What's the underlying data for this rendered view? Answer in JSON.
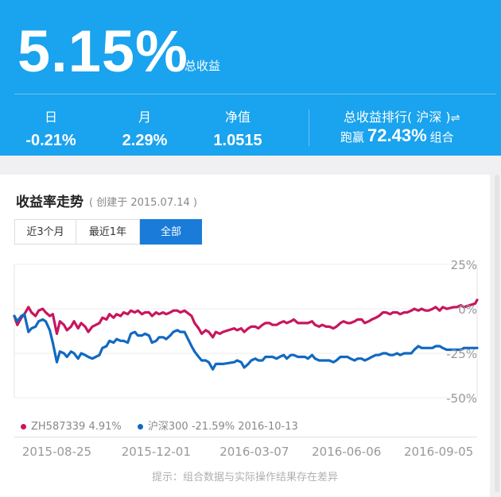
{
  "header": {
    "total_return": "5.15%",
    "total_return_label": "总收益",
    "stats": [
      {
        "label": "日",
        "value": "-0.21%"
      },
      {
        "label": "月",
        "value": "2.29%"
      },
      {
        "label": "净值",
        "value": "1.0515"
      }
    ],
    "rank": {
      "title": "总收益排行",
      "market": "( 沪深 )",
      "swap_icon": "swap-arrows-icon",
      "prefix": "跑赢",
      "percent": "72.43%",
      "suffix": "组合"
    },
    "colors": {
      "background": "#1aa3ee",
      "text": "#ffffff"
    }
  },
  "trend": {
    "title": "收益率走势",
    "created": "( 创建于 2015.07.14 )",
    "tabs": [
      {
        "label": "近3个月",
        "active": false
      },
      {
        "label": "最近1年",
        "active": false
      },
      {
        "label": "全部",
        "active": true
      }
    ]
  },
  "legend": {
    "portfolio": "ZH587339 4.91%",
    "index": "沪深300 -21.59% 2016-10-13"
  },
  "footer_tip": "提示：组合数据与实际操作结果存在差异",
  "chart_data": {
    "type": "line",
    "x_ticks": [
      "2015-08-25",
      "2015-12-01",
      "2016-03-07",
      "2016-06-06",
      "2016-09-05"
    ],
    "y_ticks": [
      "25%",
      "0%",
      "-25%",
      "-50%"
    ],
    "ylim": [
      -50,
      25
    ],
    "xlim": [
      "2015-07-14",
      "2016-10-13"
    ],
    "grid": true,
    "series": [
      {
        "name": "ZH587339",
        "color": "#c8165e",
        "points": [
          [
            "2015-07-14",
            -4
          ],
          [
            "2015-07-17",
            -9
          ],
          [
            "2015-07-21",
            -5
          ],
          [
            "2015-07-24",
            -3
          ],
          [
            "2015-07-28",
            1
          ],
          [
            "2015-07-31",
            -2
          ],
          [
            "2015-08-04",
            -4
          ],
          [
            "2015-08-07",
            -1
          ],
          [
            "2015-08-11",
            0
          ],
          [
            "2015-08-14",
            -2
          ],
          [
            "2015-08-18",
            -4
          ],
          [
            "2015-08-21",
            -3
          ],
          [
            "2015-08-25",
            -14
          ],
          [
            "2015-08-28",
            -7
          ],
          [
            "2015-09-01",
            -9
          ],
          [
            "2015-09-04",
            -12
          ],
          [
            "2015-09-08",
            -10
          ],
          [
            "2015-09-11",
            -7
          ],
          [
            "2015-09-15",
            -11
          ],
          [
            "2015-09-18",
            -8
          ],
          [
            "2015-09-22",
            -10
          ],
          [
            "2015-09-25",
            -13
          ],
          [
            "2015-09-29",
            -10
          ],
          [
            "2015-10-06",
            -8
          ],
          [
            "2015-10-09",
            -5
          ],
          [
            "2015-10-13",
            -6
          ],
          [
            "2015-10-16",
            -3
          ],
          [
            "2015-10-20",
            -5
          ],
          [
            "2015-10-23",
            -3
          ],
          [
            "2015-10-27",
            -4
          ],
          [
            "2015-10-30",
            -2
          ],
          [
            "2015-11-03",
            -3
          ],
          [
            "2015-11-06",
            -1
          ],
          [
            "2015-11-10",
            -2
          ],
          [
            "2015-11-13",
            -1
          ],
          [
            "2015-11-17",
            -3
          ],
          [
            "2015-11-20",
            -2
          ],
          [
            "2015-11-24",
            -2
          ],
          [
            "2015-11-27",
            -4
          ],
          [
            "2015-12-01",
            -2
          ],
          [
            "2015-12-04",
            -3
          ],
          [
            "2015-12-08",
            -2
          ],
          [
            "2015-12-11",
            -3
          ],
          [
            "2015-12-15",
            -2
          ],
          [
            "2015-12-18",
            -1
          ],
          [
            "2015-12-22",
            -1
          ],
          [
            "2015-12-25",
            -2
          ],
          [
            "2015-12-29",
            -1
          ],
          [
            "2016-01-05",
            -4
          ],
          [
            "2016-01-08",
            -8
          ],
          [
            "2016-01-12",
            -11
          ],
          [
            "2016-01-15",
            -14
          ],
          [
            "2016-01-19",
            -12
          ],
          [
            "2016-01-22",
            -13
          ],
          [
            "2016-01-26",
            -16
          ],
          [
            "2016-01-29",
            -13
          ],
          [
            "2016-02-02",
            -14
          ],
          [
            "2016-02-05",
            -13
          ],
          [
            "2016-02-16",
            -11
          ],
          [
            "2016-02-19",
            -12
          ],
          [
            "2016-02-23",
            -11
          ],
          [
            "2016-02-26",
            -13
          ],
          [
            "2016-03-01",
            -11
          ],
          [
            "2016-03-04",
            -10
          ],
          [
            "2016-03-08",
            -10
          ],
          [
            "2016-03-11",
            -11
          ],
          [
            "2016-03-15",
            -9
          ],
          [
            "2016-03-18",
            -8
          ],
          [
            "2016-03-22",
            -8
          ],
          [
            "2016-03-25",
            -9
          ],
          [
            "2016-03-29",
            -9
          ],
          [
            "2016-04-01",
            -8
          ],
          [
            "2016-04-05",
            -7
          ],
          [
            "2016-04-08",
            -8
          ],
          [
            "2016-04-12",
            -7
          ],
          [
            "2016-04-15",
            -6
          ],
          [
            "2016-04-19",
            -8
          ],
          [
            "2016-04-22",
            -8
          ],
          [
            "2016-04-26",
            -8
          ],
          [
            "2016-04-29",
            -8
          ],
          [
            "2016-05-03",
            -7
          ],
          [
            "2016-05-06",
            -9
          ],
          [
            "2016-05-10",
            -10
          ],
          [
            "2016-05-13",
            -9
          ],
          [
            "2016-05-17",
            -10
          ],
          [
            "2016-05-20",
            -10
          ],
          [
            "2016-05-24",
            -11
          ],
          [
            "2016-05-27",
            -10
          ],
          [
            "2016-05-31",
            -8
          ],
          [
            "2016-06-03",
            -7
          ],
          [
            "2016-06-07",
            -8
          ],
          [
            "2016-06-10",
            -8
          ],
          [
            "2016-06-14",
            -7
          ],
          [
            "2016-06-17",
            -6
          ],
          [
            "2016-06-21",
            -6
          ],
          [
            "2016-06-24",
            -8
          ],
          [
            "2016-06-28",
            -7
          ],
          [
            "2016-07-01",
            -6
          ],
          [
            "2016-07-05",
            -5
          ],
          [
            "2016-07-08",
            -4
          ],
          [
            "2016-07-12",
            -2
          ],
          [
            "2016-07-15",
            -2
          ],
          [
            "2016-07-19",
            -3
          ],
          [
            "2016-07-22",
            -2
          ],
          [
            "2016-07-26",
            -2
          ],
          [
            "2016-07-29",
            -3
          ],
          [
            "2016-08-02",
            -2
          ],
          [
            "2016-08-05",
            -2
          ],
          [
            "2016-08-09",
            -1
          ],
          [
            "2016-08-12",
            0
          ],
          [
            "2016-08-16",
            -1
          ],
          [
            "2016-08-19",
            0
          ],
          [
            "2016-08-23",
            -1
          ],
          [
            "2016-08-26",
            -1
          ],
          [
            "2016-08-30",
            0
          ],
          [
            "2016-09-02",
            1
          ],
          [
            "2016-09-06",
            -1
          ],
          [
            "2016-09-09",
            1
          ],
          [
            "2016-09-13",
            0
          ],
          [
            "2016-09-20",
            1
          ],
          [
            "2016-09-23",
            1
          ],
          [
            "2016-09-27",
            2
          ],
          [
            "2016-09-30",
            1
          ],
          [
            "2016-10-11",
            3
          ],
          [
            "2016-10-13",
            5
          ]
        ]
      },
      {
        "name": "沪深300",
        "color": "#1169c1",
        "points": [
          [
            "2015-07-14",
            -4
          ],
          [
            "2015-07-17",
            -7
          ],
          [
            "2015-07-21",
            -4
          ],
          [
            "2015-07-24",
            -3
          ],
          [
            "2015-07-28",
            -13
          ],
          [
            "2015-07-31",
            -11
          ],
          [
            "2015-08-04",
            -10
          ],
          [
            "2015-08-07",
            -7
          ],
          [
            "2015-08-11",
            -6
          ],
          [
            "2015-08-14",
            -7
          ],
          [
            "2015-08-18",
            -12
          ],
          [
            "2015-08-21",
            -19
          ],
          [
            "2015-08-25",
            -30
          ],
          [
            "2015-08-28",
            -24
          ],
          [
            "2015-09-01",
            -25
          ],
          [
            "2015-09-04",
            -27
          ],
          [
            "2015-09-08",
            -24
          ],
          [
            "2015-09-11",
            -25
          ],
          [
            "2015-09-15",
            -28
          ],
          [
            "2015-09-18",
            -25
          ],
          [
            "2015-09-22",
            -26
          ],
          [
            "2015-09-25",
            -27
          ],
          [
            "2015-09-29",
            -28
          ],
          [
            "2015-10-06",
            -26
          ],
          [
            "2015-10-09",
            -22
          ],
          [
            "2015-10-13",
            -21
          ],
          [
            "2015-10-16",
            -18
          ],
          [
            "2015-10-20",
            -19
          ],
          [
            "2015-10-23",
            -17
          ],
          [
            "2015-10-27",
            -18
          ],
          [
            "2015-10-30",
            -18
          ],
          [
            "2015-11-03",
            -19
          ],
          [
            "2015-11-06",
            -14
          ],
          [
            "2015-11-10",
            -13
          ],
          [
            "2015-11-13",
            -15
          ],
          [
            "2015-11-17",
            -15
          ],
          [
            "2015-11-20",
            -14
          ],
          [
            "2015-11-24",
            -15
          ],
          [
            "2015-11-27",
            -19
          ],
          [
            "2015-12-01",
            -18
          ],
          [
            "2015-12-04",
            -16
          ],
          [
            "2015-12-08",
            -16
          ],
          [
            "2015-12-11",
            -17
          ],
          [
            "2015-12-15",
            -15
          ],
          [
            "2015-12-18",
            -13
          ],
          [
            "2015-12-22",
            -12
          ],
          [
            "2015-12-25",
            -13
          ],
          [
            "2015-12-29",
            -13
          ],
          [
            "2016-01-05",
            -21
          ],
          [
            "2016-01-08",
            -24
          ],
          [
            "2016-01-12",
            -27
          ],
          [
            "2016-01-15",
            -29
          ],
          [
            "2016-01-19",
            -29
          ],
          [
            "2016-01-22",
            -30
          ],
          [
            "2016-01-26",
            -34
          ],
          [
            "2016-01-29",
            -31
          ],
          [
            "2016-02-02",
            -31
          ],
          [
            "2016-02-05",
            -31
          ],
          [
            "2016-02-16",
            -30
          ],
          [
            "2016-02-19",
            -29
          ],
          [
            "2016-02-23",
            -30
          ],
          [
            "2016-02-26",
            -33
          ],
          [
            "2016-03-01",
            -31
          ],
          [
            "2016-03-04",
            -29
          ],
          [
            "2016-03-08",
            -28
          ],
          [
            "2016-03-11",
            -29
          ],
          [
            "2016-03-15",
            -29
          ],
          [
            "2016-03-18",
            -27
          ],
          [
            "2016-03-22",
            -27
          ],
          [
            "2016-03-25",
            -27
          ],
          [
            "2016-03-29",
            -28
          ],
          [
            "2016-04-01",
            -27
          ],
          [
            "2016-04-05",
            -26
          ],
          [
            "2016-04-08",
            -28
          ],
          [
            "2016-04-12",
            -26
          ],
          [
            "2016-04-15",
            -26
          ],
          [
            "2016-04-19",
            -27
          ],
          [
            "2016-04-22",
            -27
          ],
          [
            "2016-04-26",
            -27
          ],
          [
            "2016-04-29",
            -28
          ],
          [
            "2016-05-03",
            -26
          ],
          [
            "2016-05-06",
            -28
          ],
          [
            "2016-05-10",
            -29
          ],
          [
            "2016-05-13",
            -29
          ],
          [
            "2016-05-17",
            -29
          ],
          [
            "2016-05-20",
            -29
          ],
          [
            "2016-05-24",
            -30
          ],
          [
            "2016-05-27",
            -29
          ],
          [
            "2016-05-31",
            -27
          ],
          [
            "2016-06-03",
            -27
          ],
          [
            "2016-06-07",
            -27
          ],
          [
            "2016-06-10",
            -28
          ],
          [
            "2016-06-14",
            -29
          ],
          [
            "2016-06-17",
            -28
          ],
          [
            "2016-06-21",
            -28
          ],
          [
            "2016-06-24",
            -29
          ],
          [
            "2016-06-28",
            -28
          ],
          [
            "2016-07-01",
            -27
          ],
          [
            "2016-07-05",
            -26
          ],
          [
            "2016-07-08",
            -26
          ],
          [
            "2016-07-12",
            -25
          ],
          [
            "2016-07-15",
            -25
          ],
          [
            "2016-07-19",
            -26
          ],
          [
            "2016-07-22",
            -26
          ],
          [
            "2016-07-26",
            -25
          ],
          [
            "2016-07-29",
            -26
          ],
          [
            "2016-08-02",
            -25
          ],
          [
            "2016-08-05",
            -25
          ],
          [
            "2016-08-09",
            -25
          ],
          [
            "2016-08-12",
            -23
          ],
          [
            "2016-08-16",
            -21
          ],
          [
            "2016-08-19",
            -22
          ],
          [
            "2016-08-23",
            -22
          ],
          [
            "2016-08-26",
            -22
          ],
          [
            "2016-08-30",
            -22
          ],
          [
            "2016-09-02",
            -21
          ],
          [
            "2016-09-06",
            -21
          ],
          [
            "2016-09-09",
            -22
          ],
          [
            "2016-09-13",
            -23
          ],
          [
            "2016-09-20",
            -23
          ],
          [
            "2016-09-23",
            -23
          ],
          [
            "2016-09-27",
            -23
          ],
          [
            "2016-09-30",
            -22
          ],
          [
            "2016-10-11",
            -22
          ],
          [
            "2016-10-13",
            -22
          ]
        ]
      }
    ]
  }
}
